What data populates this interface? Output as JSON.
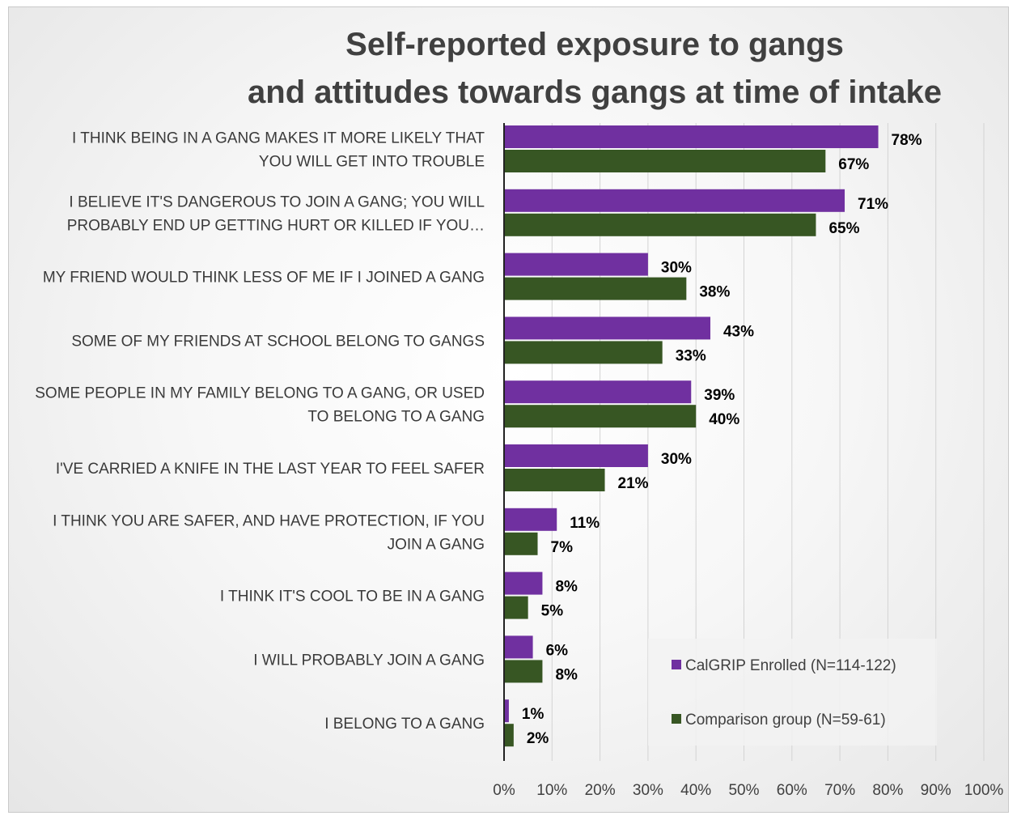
{
  "chart_data": {
    "type": "bar",
    "orientation": "horizontal",
    "title_lines": [
      "Self-reported exposure to gangs",
      "and attitudes towards gangs at time of intake"
    ],
    "categories": [
      [
        "I THINK BEING IN A GANG MAKES IT MORE LIKELY THAT",
        "YOU WILL GET INTO TROUBLE"
      ],
      [
        "I BELIEVE IT'S DANGEROUS TO JOIN A GANG; YOU WILL",
        "PROBABLY END UP GETTING HURT OR KILLED IF YOU…"
      ],
      [
        "MY FRIEND WOULD THINK LESS OF ME IF I JOINED A GANG"
      ],
      [
        "SOME OF MY FRIENDS AT SCHOOL BELONG TO GANGS"
      ],
      [
        "SOME PEOPLE IN MY FAMILY BELONG TO A GANG, OR USED",
        "TO BELONG TO A GANG"
      ],
      [
        "I'VE CARRIED A KNIFE IN THE LAST YEAR TO FEEL SAFER"
      ],
      [
        "I THINK YOU ARE SAFER, AND HAVE PROTECTION, IF YOU",
        "JOIN A GANG"
      ],
      [
        "I THINK IT'S COOL TO BE IN A GANG"
      ],
      [
        "I WILL PROBABLY JOIN A GANG"
      ],
      [
        "I BELONG TO A GANG"
      ]
    ],
    "series": [
      {
        "name": "CalGRIP Enrolled (N=114-122)",
        "color": "#7030a0",
        "values": [
          78,
          71,
          30,
          43,
          39,
          30,
          11,
          8,
          6,
          1
        ],
        "labels": [
          "78%",
          "71%",
          "30%",
          "43%",
          "39%",
          "30%",
          "11%",
          "8%",
          "6%",
          "1%"
        ]
      },
      {
        "name": "Comparison group (N=59-61)",
        "color": "#375623",
        "values": [
          67,
          65,
          38,
          33,
          40,
          21,
          7,
          5,
          8,
          2
        ],
        "labels": [
          "67%",
          "65%",
          "38%",
          "33%",
          "40%",
          "21%",
          "7%",
          "5%",
          "8%",
          "2%"
        ]
      }
    ],
    "xlim": [
      0,
      100
    ],
    "ticks": [
      "0%",
      "10%",
      "20%",
      "30%",
      "40%",
      "50%",
      "60%",
      "70%",
      "80%",
      "90%",
      "100%"
    ],
    "grid": true,
    "legend_position": "bottom-right"
  }
}
